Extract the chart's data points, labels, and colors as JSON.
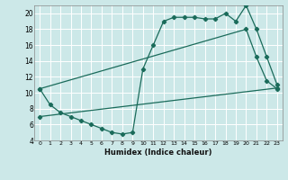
{
  "xlabel": "Humidex (Indice chaleur)",
  "bg_color": "#cce8e8",
  "grid_color": "#ffffff",
  "line_color": "#1a6b5a",
  "xlim": [
    -0.5,
    23.5
  ],
  "ylim": [
    4,
    21
  ],
  "xticks": [
    0,
    1,
    2,
    3,
    4,
    5,
    6,
    7,
    8,
    9,
    10,
    11,
    12,
    13,
    14,
    15,
    16,
    17,
    18,
    19,
    20,
    21,
    22,
    23
  ],
  "yticks": [
    4,
    6,
    8,
    10,
    12,
    14,
    16,
    18,
    20
  ],
  "line1_x": [
    0,
    1,
    2,
    3,
    4,
    5,
    6,
    7,
    8,
    9,
    10,
    11,
    12,
    13,
    14,
    15,
    16,
    17,
    18,
    19,
    20,
    21,
    22,
    23
  ],
  "line1_y": [
    10.5,
    8.5,
    7.5,
    7.0,
    6.5,
    6.0,
    5.5,
    5.0,
    4.8,
    5.0,
    13.0,
    16.0,
    19.0,
    19.5,
    19.5,
    19.5,
    19.3,
    19.3,
    20.0,
    19.0,
    21.0,
    18.0,
    14.5,
    11.0
  ],
  "line2_x": [
    0,
    23
  ],
  "line2_y": [
    7.0,
    10.6
  ],
  "line3_x": [
    0,
    20,
    21,
    22,
    23
  ],
  "line3_y": [
    10.5,
    18.0,
    14.5,
    11.5,
    10.5
  ]
}
